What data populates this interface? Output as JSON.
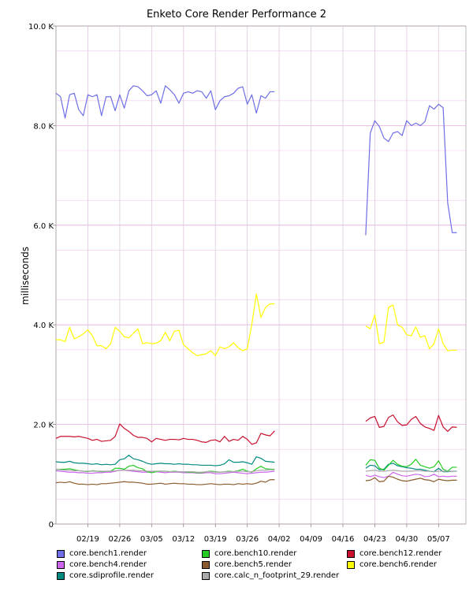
{
  "chart_data": {
    "type": "line",
    "title": "Enketo Core Render Performance 2",
    "ylabel": "milliseconds",
    "xlabel": "",
    "ylim": [
      0,
      10000
    ],
    "y_ticks": [
      {
        "value": 0,
        "label": "0"
      },
      {
        "value": 2000,
        "label": "2.0 K"
      },
      {
        "value": 4000,
        "label": "4.0 K"
      },
      {
        "value": 6000,
        "label": "6.0 K"
      },
      {
        "value": 8000,
        "label": "8.0 K"
      },
      {
        "value": 10000,
        "label": "10.0 K"
      }
    ],
    "x_ticks": [
      "02/19",
      "02/26",
      "03/05",
      "03/12",
      "03/19",
      "03/26",
      "04/02",
      "04/09",
      "04/16",
      "04/23",
      "04/30",
      "05/07"
    ],
    "x_dates": [
      "02/19",
      "02/26",
      "03/05",
      "03/12",
      "03/19",
      "03/26",
      "04/02",
      "04/09",
      "04/16",
      "04/23",
      "04/30",
      "05/07"
    ],
    "legend_position": "bottom",
    "grid": true,
    "series": [
      {
        "name": "core.bench1.render",
        "color": "#6e6ee6",
        "segments": [
          {
            "start": "02/12",
            "values": [
              8650,
              8580,
              8150,
              8620,
              8650,
              8320,
              8200,
              8620,
              8580,
              8620,
              8200,
              8580,
              8580,
              8300,
              8620,
              8350,
              8700,
              8800,
              8780,
              8700,
              8600,
              8620,
              8700,
              8450,
              8800,
              8720,
              8620,
              8450,
              8650,
              8680,
              8650,
              8700,
              8680,
              8550,
              8700,
              8320,
              8500,
              8580,
              8600,
              8650,
              8750,
              8780,
              8430,
              8620,
              8250,
              8600,
              8550,
              8680,
              8680
            ]
          },
          {
            "start": "04/21",
            "values": [
              5800,
              7850,
              8100,
              7980,
              7750,
              7680,
              7850,
              7880,
              7800,
              8100,
              8000,
              8050,
              8000,
              8080,
              8400,
              8330,
              8430,
              8360,
              6450,
              5850,
              5850
            ]
          }
        ]
      },
      {
        "name": "core.bench4.render",
        "color": "#cc66ee",
        "segments": [
          {
            "start": "02/12",
            "values": [
              1070,
              1060,
              1050,
              1040,
              1040,
              1030,
              1030,
              1020,
              1020,
              1030,
              1030,
              1040,
              1040,
              1060,
              1080,
              1080,
              1070,
              1060,
              1050,
              1040,
              1040,
              1050,
              1050,
              1040,
              1030,
              1040,
              1040,
              1040,
              1030,
              1030,
              1030,
              1020,
              1020,
              1030,
              1030,
              1010,
              1010,
              1020,
              1030,
              1040,
              1030,
              1020,
              1010,
              1020,
              1030,
              1040,
              1040,
              1050,
              1060
            ]
          },
          {
            "start": "04/21",
            "values": [
              980,
              950,
              980,
              950,
              930,
              960,
              1040,
              1000,
              970,
              960,
              980,
              1000,
              990,
              950,
              960,
              1000,
              950,
              960,
              950,
              960,
              960
            ]
          }
        ]
      },
      {
        "name": "core.sdiprofile.render",
        "color": "#008b80",
        "segments": [
          {
            "start": "02/12",
            "values": [
              1250,
              1240,
              1240,
              1260,
              1230,
              1220,
              1220,
              1210,
              1200,
              1210,
              1190,
              1200,
              1190,
              1200,
              1290,
              1310,
              1380,
              1310,
              1290,
              1260,
              1220,
              1200,
              1210,
              1220,
              1210,
              1210,
              1200,
              1210,
              1200,
              1200,
              1190,
              1190,
              1180,
              1180,
              1180,
              1170,
              1180,
              1210,
              1290,
              1240,
              1240,
              1250,
              1230,
              1200,
              1350,
              1320,
              1260,
              1250,
              1240
            ]
          },
          {
            "start": "04/21",
            "values": [
              1120,
              1180,
              1170,
              1090,
              1100,
              1200,
              1220,
              1170,
              1150,
              1130,
              1120,
              1100,
              1100,
              1080,
              1060,
              1050,
              1120,
              1050,
              1050,
              1060,
              1060
            ]
          }
        ]
      },
      {
        "name": "core.bench10.render",
        "color": "#22cc22",
        "segments": [
          {
            "start": "02/12",
            "values": [
              1090,
              1100,
              1100,
              1110,
              1090,
              1070,
              1060,
              1050,
              1070,
              1060,
              1050,
              1060,
              1060,
              1120,
              1120,
              1100,
              1160,
              1180,
              1130,
              1110,
              1050,
              1030,
              1050,
              1060,
              1060,
              1050,
              1060,
              1050,
              1050,
              1040,
              1040,
              1030,
              1030,
              1050,
              1060,
              1050,
              1040,
              1050,
              1060,
              1050,
              1070,
              1100,
              1060,
              1040,
              1110,
              1160,
              1110,
              1100,
              1100
            ]
          },
          {
            "start": "04/21",
            "values": [
              1180,
              1290,
              1280,
              1120,
              1080,
              1180,
              1280,
              1200,
              1160,
              1150,
              1200,
              1300,
              1180,
              1150,
              1120,
              1150,
              1270,
              1100,
              1060,
              1140,
              1140
            ]
          }
        ]
      },
      {
        "name": "core.bench5.render",
        "color": "#8b5a2b",
        "segments": [
          {
            "start": "02/12",
            "values": [
              830,
              840,
              830,
              850,
              820,
              800,
              800,
              790,
              800,
              790,
              810,
              810,
              820,
              830,
              840,
              850,
              840,
              840,
              830,
              820,
              800,
              800,
              810,
              820,
              800,
              810,
              820,
              810,
              810,
              800,
              800,
              790,
              790,
              800,
              810,
              800,
              790,
              800,
              800,
              790,
              810,
              800,
              810,
              800,
              820,
              860,
              840,
              890,
              890
            ]
          },
          {
            "start": "04/21",
            "values": [
              870,
              880,
              930,
              850,
              860,
              960,
              940,
              900,
              870,
              860,
              880,
              900,
              920,
              890,
              880,
              850,
              900,
              880,
              870,
              880,
              880
            ]
          }
        ]
      },
      {
        "name": "core.calc_n_footprint_29.render",
        "color": "#aaaaaa",
        "segments": [
          {
            "start": "02/12",
            "values": [
              1100,
              1090,
              1080,
              1080,
              1070,
              1070,
              1060,
              1060,
              1060,
              1060,
              1060,
              1060,
              1060,
              1070,
              1080,
              1080,
              1080,
              1080,
              1070,
              1070,
              1060,
              1060,
              1060,
              1060,
              1060,
              1050,
              1050,
              1050,
              1050,
              1050,
              1050,
              1040,
              1040,
              1050,
              1050,
              1040,
              1040,
              1050,
              1050,
              1050,
              1060,
              1060,
              1050,
              1050,
              1070,
              1080,
              1080,
              1090,
              1090
            ]
          },
          {
            "start": "04/21",
            "values": [
              1060,
              1070,
              1080,
              1060,
              1060,
              1070,
              1080,
              1070,
              1060,
              1060,
              1060,
              1070,
              1070,
              1060,
              1060,
              1050,
              1060,
              1060,
              1060,
              1060,
              1060
            ]
          }
        ]
      },
      {
        "name": "core.bench12.render",
        "color": "#c8102e",
        "segments": [
          {
            "start": "02/12",
            "values": [
              1720,
              1760,
              1760,
              1760,
              1750,
              1760,
              1740,
              1720,
              1680,
              1700,
              1660,
              1670,
              1680,
              1760,
              2010,
              1920,
              1860,
              1780,
              1740,
              1740,
              1720,
              1650,
              1720,
              1700,
              1680,
              1700,
              1700,
              1690,
              1720,
              1700,
              1700,
              1680,
              1650,
              1640,
              1680,
              1690,
              1650,
              1760,
              1660,
              1700,
              1680,
              1760,
              1700,
              1600,
              1630,
              1820,
              1790,
              1770,
              1870
            ]
          },
          {
            "start": "04/21",
            "values": [
              2060,
              2130,
              2160,
              1940,
              1960,
              2140,
              2190,
              2050,
              1980,
              1990,
              2100,
              2160,
              2020,
              1950,
              1920,
              1880,
              2180,
              1950,
              1860,
              1950,
              1940
            ]
          }
        ]
      },
      {
        "name": "core.bench6.render",
        "color": "#ffff00",
        "segments": [
          {
            "start": "02/12",
            "values": [
              3700,
              3700,
              3660,
              3950,
              3720,
              3760,
              3820,
              3900,
              3780,
              3580,
              3580,
              3520,
              3620,
              3950,
              3870,
              3760,
              3740,
              3830,
              3920,
              3620,
              3640,
              3620,
              3630,
              3680,
              3850,
              3680,
              3870,
              3890,
              3600,
              3520,
              3440,
              3380,
              3400,
              3420,
              3480,
              3380,
              3560,
              3520,
              3560,
              3640,
              3540,
              3480,
              3520,
              4010,
              4620,
              4150,
              4350,
              4420,
              4420
            ]
          },
          {
            "start": "04/21",
            "values": [
              3980,
              3920,
              4200,
              3620,
              3650,
              4350,
              4400,
              4000,
              3950,
              3800,
              3780,
              3960,
              3750,
              3780,
              3520,
              3620,
              3920,
              3620,
              3480,
              3490,
              3490
            ]
          }
        ]
      }
    ]
  }
}
